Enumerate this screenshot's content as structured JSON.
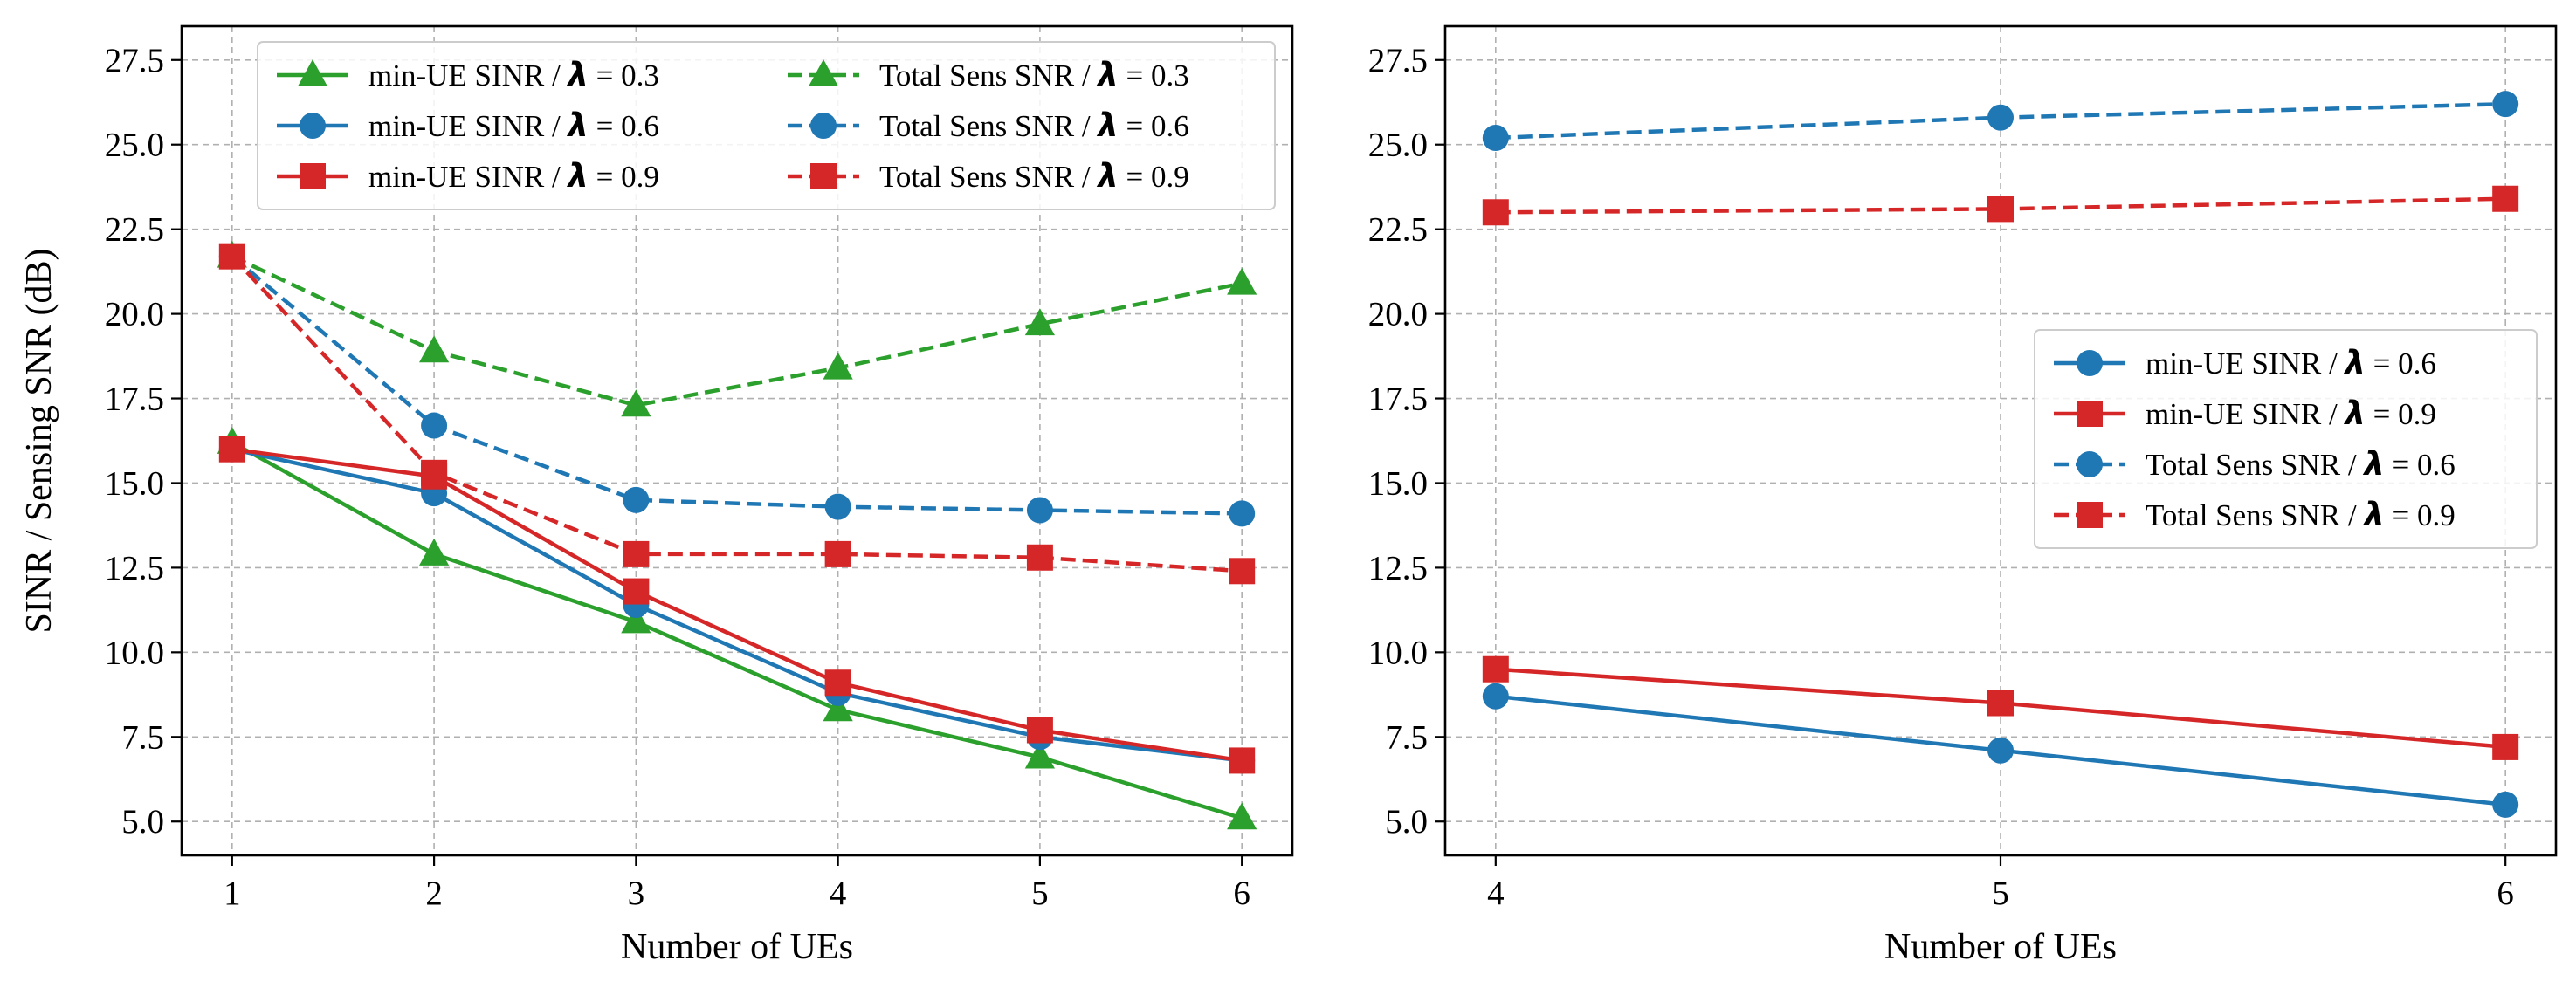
{
  "figure": {
    "ylabel": "SINR / Sensing SNR (dB)",
    "lambda_symbol": "λ"
  },
  "chart_data": [
    {
      "type": "line",
      "title": "",
      "xlabel": "Number of UEs",
      "ylabel": "SINR / Sensing SNR (dB)",
      "xlim": [
        0.75,
        6.25
      ],
      "ylim": [
        4.0,
        28.5
      ],
      "x_ticks": [
        1,
        2,
        3,
        4,
        5,
        6
      ],
      "y_ticks": [
        5.0,
        7.5,
        10.0,
        12.5,
        15.0,
        17.5,
        20.0,
        22.5,
        25.0,
        27.5
      ],
      "grid": true,
      "legend": {
        "location": "top",
        "columns": 2
      },
      "x": [
        1,
        2,
        3,
        4,
        5,
        6
      ],
      "series": [
        {
          "name": "min-UE SINR",
          "lambda_text": "= 0.3",
          "color": "#2ca02c",
          "linestyle": "solid",
          "marker": "triangle",
          "values": [
            16.2,
            12.9,
            10.9,
            8.3,
            6.9,
            5.1
          ]
        },
        {
          "name": "min-UE SINR",
          "lambda_text": "= 0.6",
          "color": "#1f77b4",
          "linestyle": "solid",
          "marker": "circle",
          "values": [
            16.0,
            14.7,
            11.4,
            8.8,
            7.5,
            6.8
          ]
        },
        {
          "name": "min-UE SINR",
          "lambda_text": "= 0.9",
          "color": "#d62728",
          "linestyle": "solid",
          "marker": "square",
          "values": [
            16.0,
            15.2,
            11.8,
            9.1,
            7.7,
            6.8
          ]
        },
        {
          "name": "Total Sens SNR",
          "lambda_text": "= 0.3",
          "color": "#2ca02c",
          "linestyle": "dashed",
          "marker": "triangle",
          "values": [
            21.7,
            18.9,
            17.3,
            18.4,
            19.7,
            20.9
          ]
        },
        {
          "name": "Total Sens SNR",
          "lambda_text": "= 0.6",
          "color": "#1f77b4",
          "linestyle": "dashed",
          "marker": "circle",
          "values": [
            21.7,
            16.7,
            14.5,
            14.3,
            14.2,
            14.1
          ]
        },
        {
          "name": "Total Sens SNR",
          "lambda_text": "= 0.9",
          "color": "#d62728",
          "linestyle": "dashed",
          "marker": "square",
          "values": [
            21.7,
            15.3,
            12.9,
            12.9,
            12.8,
            12.4
          ]
        }
      ]
    },
    {
      "type": "line",
      "title": "",
      "xlabel": "Number of UEs",
      "ylabel": "",
      "xlim": [
        3.9,
        6.1
      ],
      "ylim": [
        4.0,
        28.5
      ],
      "x_ticks": [
        4,
        5,
        6
      ],
      "y_ticks": [
        5.0,
        7.5,
        10.0,
        12.5,
        15.0,
        17.5,
        20.0,
        22.5,
        25.0,
        27.5
      ],
      "grid": true,
      "legend": {
        "location": "center-right",
        "columns": 1
      },
      "x": [
        4,
        5,
        6
      ],
      "series": [
        {
          "name": "min-UE SINR",
          "lambda_text": "= 0.6",
          "color": "#1f77b4",
          "linestyle": "solid",
          "marker": "circle",
          "values": [
            8.7,
            7.1,
            5.5
          ]
        },
        {
          "name": "min-UE SINR",
          "lambda_text": "= 0.9",
          "color": "#d62728",
          "linestyle": "solid",
          "marker": "square",
          "values": [
            9.5,
            8.5,
            7.2
          ]
        },
        {
          "name": "Total Sens SNR",
          "lambda_text": "= 0.6",
          "color": "#1f77b4",
          "linestyle": "dashed",
          "marker": "circle",
          "values": [
            25.2,
            25.8,
            26.2
          ]
        },
        {
          "name": "Total Sens SNR",
          "lambda_text": "= 0.9",
          "color": "#d62728",
          "linestyle": "dashed",
          "marker": "square",
          "values": [
            23.0,
            23.1,
            23.4
          ]
        }
      ]
    }
  ]
}
